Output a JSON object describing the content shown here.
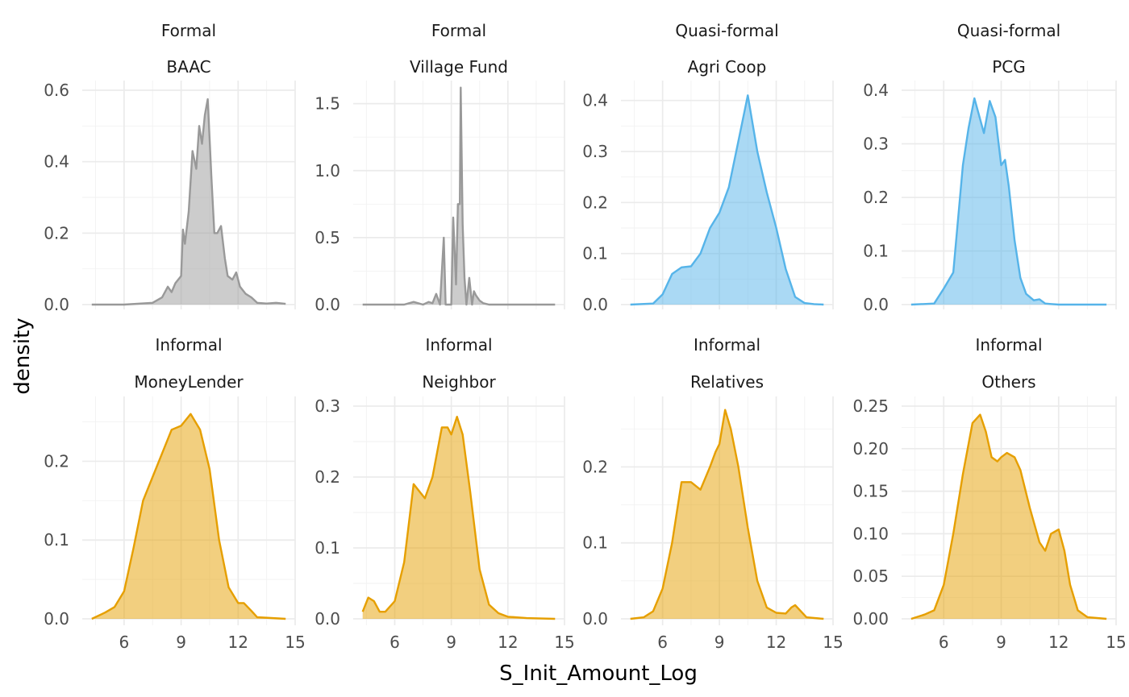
{
  "chart_data": {
    "type": "area",
    "subtype": "density",
    "xlabel": "S_Init_Amount_Log",
    "ylabel": "density",
    "xlim": [
      3.8,
      15.0
    ],
    "x_ticks": [
      6,
      9,
      12,
      15
    ],
    "x_tick_labels": [
      "6",
      "9",
      "12",
      "15"
    ],
    "grid": true,
    "legend": "none",
    "colors": {
      "Formal": "#999999",
      "Quasi-formal": "#56B4E9",
      "Informal": "#E69F00"
    },
    "panels": [
      {
        "group": "Formal",
        "name": "BAAC",
        "ylim": [
          0,
          0.6
        ],
        "y_ticks": [
          0,
          0.2,
          0.4,
          0.6
        ],
        "y_tick_labels": [
          "0.0",
          "0.2",
          "0.4",
          "0.6"
        ],
        "x": [
          4.3,
          6.0,
          7.5,
          8.0,
          8.3,
          8.5,
          8.7,
          9.0,
          9.1,
          9.2,
          9.4,
          9.6,
          9.8,
          9.95,
          10.1,
          10.25,
          10.4,
          10.6,
          10.75,
          10.9,
          11.1,
          11.3,
          11.45,
          11.7,
          11.9,
          12.1,
          12.4,
          12.7,
          13.0,
          13.5,
          14.0,
          14.5
        ],
        "y": [
          0.0,
          0.0,
          0.005,
          0.02,
          0.05,
          0.035,
          0.06,
          0.08,
          0.21,
          0.17,
          0.26,
          0.43,
          0.38,
          0.5,
          0.45,
          0.53,
          0.575,
          0.35,
          0.2,
          0.2,
          0.22,
          0.13,
          0.08,
          0.07,
          0.09,
          0.05,
          0.03,
          0.02,
          0.005,
          0.003,
          0.005,
          0.002
        ]
      },
      {
        "group": "Formal",
        "name": "Village Fund",
        "ylim": [
          0,
          1.6
        ],
        "y_ticks": [
          0,
          0.5,
          1.0,
          1.5
        ],
        "y_tick_labels": [
          "0.0",
          "0.5",
          "1.0",
          "1.5"
        ],
        "x": [
          4.3,
          6.5,
          7.0,
          7.5,
          7.8,
          8.0,
          8.2,
          8.4,
          8.6,
          8.7,
          8.8,
          9.0,
          9.1,
          9.25,
          9.35,
          9.45,
          9.5,
          9.6,
          9.7,
          9.8,
          9.85,
          9.95,
          10.1,
          10.2,
          10.3,
          10.4,
          10.5,
          10.7,
          11.0,
          14.5
        ],
        "y": [
          0.0,
          0.0,
          0.02,
          0.0,
          0.02,
          0.01,
          0.08,
          0.0,
          0.5,
          0.0,
          0.0,
          0.0,
          0.65,
          0.15,
          0.75,
          0.75,
          1.62,
          0.6,
          0.2,
          0.0,
          0.06,
          0.2,
          0.0,
          0.1,
          0.07,
          0.05,
          0.03,
          0.01,
          0.0,
          0.0
        ]
      },
      {
        "group": "Quasi-formal",
        "name": "Agri Coop",
        "ylim": [
          0,
          0.42
        ],
        "y_ticks": [
          0,
          0.1,
          0.2,
          0.3,
          0.4
        ],
        "y_tick_labels": [
          "0.0",
          "0.1",
          "0.2",
          "0.3",
          "0.4"
        ],
        "x": [
          4.3,
          5.5,
          6.0,
          6.5,
          7.0,
          7.5,
          8.0,
          8.5,
          9.0,
          9.5,
          10.0,
          10.5,
          11.0,
          11.5,
          12.0,
          12.5,
          13.0,
          13.5,
          14.0,
          14.5
        ],
        "y": [
          0.0,
          0.002,
          0.02,
          0.06,
          0.073,
          0.075,
          0.1,
          0.15,
          0.18,
          0.23,
          0.32,
          0.41,
          0.3,
          0.22,
          0.15,
          0.07,
          0.015,
          0.003,
          0.001,
          0.0
        ]
      },
      {
        "group": "Quasi-formal",
        "name": "PCG",
        "ylim": [
          0,
          0.4
        ],
        "y_ticks": [
          0,
          0.1,
          0.2,
          0.3,
          0.4
        ],
        "y_tick_labels": [
          "0.0",
          "0.1",
          "0.2",
          "0.3",
          "0.4"
        ],
        "x": [
          4.3,
          5.5,
          6.0,
          6.5,
          7.0,
          7.3,
          7.6,
          8.1,
          8.4,
          8.7,
          9.0,
          9.2,
          9.4,
          9.7,
          10.0,
          10.3,
          10.7,
          11.0,
          11.3,
          11.6,
          12.0,
          12.5,
          13.0,
          14.5
        ],
        "y": [
          0.0,
          0.002,
          0.03,
          0.06,
          0.26,
          0.33,
          0.385,
          0.32,
          0.38,
          0.35,
          0.26,
          0.27,
          0.22,
          0.12,
          0.05,
          0.02,
          0.008,
          0.01,
          0.002,
          0.001,
          0.0,
          0.0,
          0.0,
          0.0
        ]
      },
      {
        "group": "Informal",
        "name": "MoneyLender",
        "ylim": [
          0,
          0.27
        ],
        "y_ticks": [
          0,
          0.1,
          0.2
        ],
        "y_tick_labels": [
          "0.0",
          "0.1",
          "0.2"
        ],
        "x": [
          4.3,
          5.0,
          5.5,
          6.0,
          6.5,
          7.0,
          7.5,
          8.0,
          8.5,
          9.0,
          9.5,
          10.0,
          10.5,
          11.0,
          11.5,
          12.0,
          12.3,
          12.7,
          13.0,
          14.5
        ],
        "y": [
          0.0,
          0.008,
          0.015,
          0.035,
          0.09,
          0.15,
          0.18,
          0.21,
          0.24,
          0.245,
          0.26,
          0.24,
          0.19,
          0.1,
          0.04,
          0.02,
          0.02,
          0.01,
          0.002,
          0.0
        ]
      },
      {
        "group": "Informal",
        "name": "Neighbor",
        "ylim": [
          0,
          0.3
        ],
        "y_ticks": [
          0,
          0.1,
          0.2,
          0.3
        ],
        "y_tick_labels": [
          "0.0",
          "0.1",
          "0.2",
          "0.3"
        ],
        "x": [
          4.3,
          4.6,
          4.9,
          5.2,
          5.5,
          6.0,
          6.5,
          7.0,
          7.3,
          7.6,
          8.0,
          8.5,
          8.8,
          9.0,
          9.3,
          9.6,
          10.0,
          10.5,
          11.0,
          11.5,
          12.0,
          12.5,
          13.0,
          14.5
        ],
        "y": [
          0.01,
          0.03,
          0.025,
          0.01,
          0.01,
          0.025,
          0.08,
          0.19,
          0.18,
          0.17,
          0.2,
          0.27,
          0.27,
          0.26,
          0.285,
          0.26,
          0.18,
          0.07,
          0.02,
          0.008,
          0.003,
          0.002,
          0.001,
          0.0
        ]
      },
      {
        "group": "Informal",
        "name": "Relatives",
        "ylim": [
          0,
          0.28
        ],
        "y_ticks": [
          0.0,
          0.1,
          0.2
        ],
        "y_tick_labels": [
          "0.0",
          "0.1",
          "0.2"
        ],
        "x": [
          4.3,
          5.0,
          5.5,
          6.0,
          6.5,
          7.0,
          7.5,
          8.0,
          8.5,
          8.8,
          9.0,
          9.3,
          9.6,
          10.0,
          10.5,
          11.0,
          11.5,
          12.0,
          12.5,
          12.8,
          13.0,
          13.3,
          13.6,
          14.5
        ],
        "y": [
          0.0,
          0.002,
          0.01,
          0.04,
          0.1,
          0.18,
          0.18,
          0.17,
          0.2,
          0.22,
          0.23,
          0.275,
          0.25,
          0.2,
          0.12,
          0.05,
          0.015,
          0.008,
          0.007,
          0.015,
          0.018,
          0.01,
          0.002,
          0.0
        ]
      },
      {
        "group": "Informal",
        "name": "Others",
        "ylim": [
          0,
          0.25
        ],
        "y_ticks": [
          0,
          0.05,
          0.1,
          0.15,
          0.2,
          0.25
        ],
        "y_tick_labels": [
          "0.00",
          "0.05",
          "0.10",
          "0.15",
          "0.20",
          "0.25"
        ],
        "x": [
          4.3,
          5.0,
          5.5,
          6.0,
          6.5,
          7.0,
          7.5,
          7.9,
          8.2,
          8.5,
          8.8,
          9.0,
          9.3,
          9.7,
          10.0,
          10.5,
          11.0,
          11.3,
          11.6,
          12.0,
          12.3,
          12.6,
          13.0,
          13.5,
          14.5
        ],
        "y": [
          0.0,
          0.005,
          0.01,
          0.04,
          0.1,
          0.17,
          0.23,
          0.24,
          0.22,
          0.19,
          0.185,
          0.19,
          0.195,
          0.19,
          0.175,
          0.13,
          0.09,
          0.08,
          0.1,
          0.105,
          0.08,
          0.04,
          0.01,
          0.002,
          0.0
        ]
      }
    ]
  }
}
